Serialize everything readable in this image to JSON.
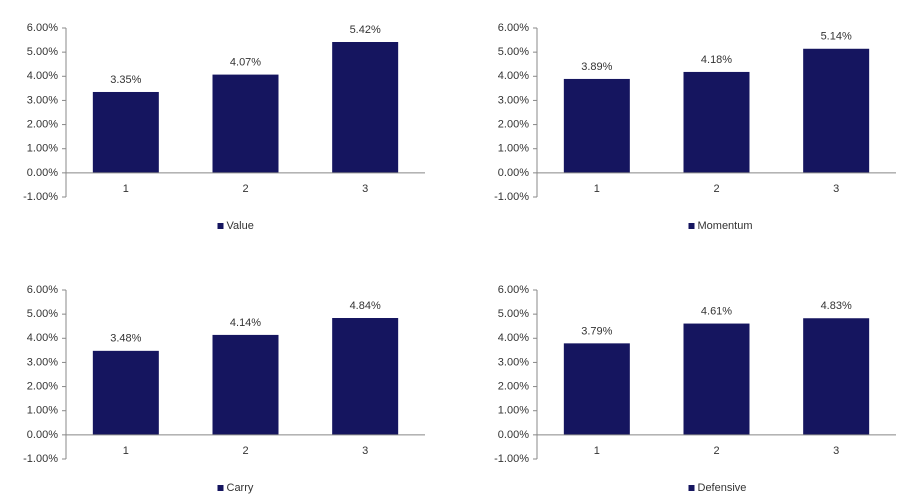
{
  "chart_data": [
    {
      "type": "bar",
      "categories": [
        "1",
        "2",
        "3"
      ],
      "series": [
        {
          "name": "Value",
          "color": "#15155f",
          "values": [
            3.35,
            4.07,
            5.42
          ],
          "value_labels": [
            "3.35%",
            "4.07%",
            "5.42%"
          ]
        }
      ],
      "ylim": [
        -1,
        6
      ],
      "yticks": [
        {
          "value": -1,
          "label": "-1.00%"
        },
        {
          "value": 0,
          "label": "0.00%"
        },
        {
          "value": 1,
          "label": "1.00%"
        },
        {
          "value": 2,
          "label": "2.00%"
        },
        {
          "value": 3,
          "label": "3.00%"
        },
        {
          "value": 4,
          "label": "4.00%"
        },
        {
          "value": 5,
          "label": "5.00%"
        },
        {
          "value": 6,
          "label": "6.00%"
        }
      ],
      "legend": "bottom"
    },
    {
      "type": "bar",
      "categories": [
        "1",
        "2",
        "3"
      ],
      "series": [
        {
          "name": "Momentum",
          "color": "#15155f",
          "values": [
            3.89,
            4.18,
            5.14
          ],
          "value_labels": [
            "3.89%",
            "4.18%",
            "5.14%"
          ]
        }
      ],
      "ylim": [
        -1,
        6
      ],
      "yticks": [
        {
          "value": -1,
          "label": "-1.00%"
        },
        {
          "value": 0,
          "label": "0.00%"
        },
        {
          "value": 1,
          "label": "1.00%"
        },
        {
          "value": 2,
          "label": "2.00%"
        },
        {
          "value": 3,
          "label": "3.00%"
        },
        {
          "value": 4,
          "label": "4.00%"
        },
        {
          "value": 5,
          "label": "5.00%"
        },
        {
          "value": 6,
          "label": "6.00%"
        }
      ],
      "legend": "bottom"
    },
    {
      "type": "bar",
      "categories": [
        "1",
        "2",
        "3"
      ],
      "series": [
        {
          "name": "Carry",
          "color": "#15155f",
          "values": [
            3.48,
            4.14,
            4.84
          ],
          "value_labels": [
            "3.48%",
            "4.14%",
            "4.84%"
          ]
        }
      ],
      "ylim": [
        -1,
        6
      ],
      "yticks": [
        {
          "value": -1,
          "label": "-1.00%"
        },
        {
          "value": 0,
          "label": "0.00%"
        },
        {
          "value": 1,
          "label": "1.00%"
        },
        {
          "value": 2,
          "label": "2.00%"
        },
        {
          "value": 3,
          "label": "3.00%"
        },
        {
          "value": 4,
          "label": "4.00%"
        },
        {
          "value": 5,
          "label": "5.00%"
        },
        {
          "value": 6,
          "label": "6.00%"
        }
      ],
      "legend": "bottom"
    },
    {
      "type": "bar",
      "categories": [
        "1",
        "2",
        "3"
      ],
      "series": [
        {
          "name": "Defensive",
          "color": "#15155f",
          "values": [
            3.79,
            4.61,
            4.83
          ],
          "value_labels": [
            "3.79%",
            "4.61%",
            "4.83%"
          ]
        }
      ],
      "ylim": [
        -1,
        6
      ],
      "yticks": [
        {
          "value": -1,
          "label": "-1.00%"
        },
        {
          "value": 0,
          "label": "0.00%"
        },
        {
          "value": 1,
          "label": "1.00%"
        },
        {
          "value": 2,
          "label": "2.00%"
        },
        {
          "value": 3,
          "label": "3.00%"
        },
        {
          "value": 4,
          "label": "4.00%"
        },
        {
          "value": 5,
          "label": "5.00%"
        },
        {
          "value": 6,
          "label": "6.00%"
        }
      ],
      "legend": "bottom"
    }
  ]
}
